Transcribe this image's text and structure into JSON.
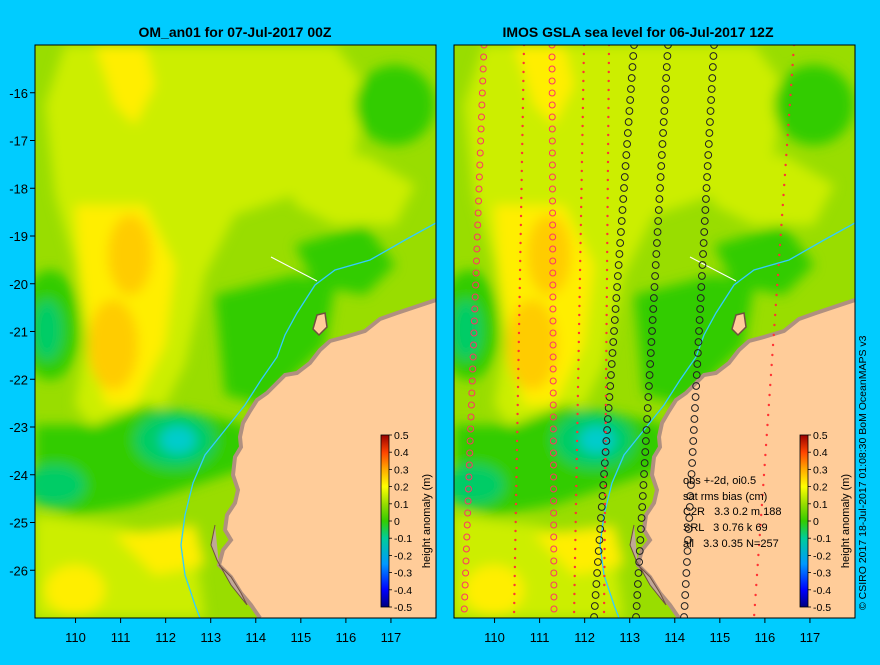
{
  "background_color": "#00ccff",
  "land_color": "#ffcc99",
  "coast_color": "#c0a898",
  "isobath_color": "#33ccff",
  "left_panel": {
    "title": "OM_an01 for 07-Jul-2017 00Z"
  },
  "right_panel": {
    "title": "IMOS GSLA sea level  for 06-Jul-2017 12Z",
    "stats": [
      "obs +-2d, oi0.5",
      "sat rms bias (cm)",
      "C2R   3.3 0.2 m 188",
      "SRL   3 0.76 k 69",
      "all   3.3 0.35 N=257"
    ]
  },
  "axes": {
    "lon_ticks": [
      "110",
      "111",
      "112",
      "113",
      "114",
      "115",
      "116",
      "117"
    ],
    "lat_ticks": [
      "-16",
      "-17",
      "-18",
      "-19",
      "-20",
      "-21",
      "-22",
      "-23",
      "-24",
      "-25",
      "-26"
    ],
    "lon_range": [
      109.1,
      118.0
    ],
    "lat_range": [
      -27.0,
      -15.0
    ]
  },
  "colorbar": {
    "label": "height anomaly (m)",
    "ticks": [
      "0.5",
      "0.4",
      "0.3",
      "0.2",
      "0.1",
      "0",
      "-0.1",
      "-0.2",
      "-0.3",
      "-0.4",
      "-0.5"
    ],
    "range": [
      -0.5,
      0.5
    ]
  },
  "credit": "© CSIRO 2017   18-Jul-2017 01:08:30 BoM OceanMAPS v3"
}
